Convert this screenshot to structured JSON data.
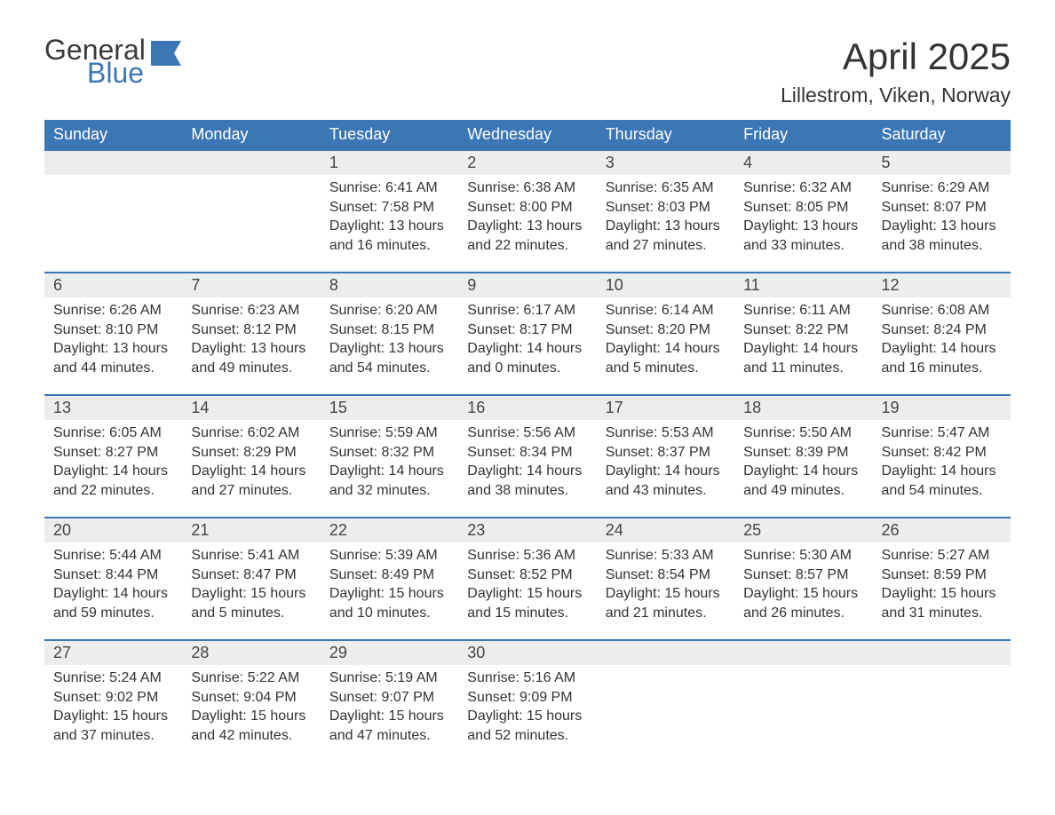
{
  "brand": {
    "general": "General",
    "blue": "Blue",
    "flag_color": "#3b76b5"
  },
  "title": "April 2025",
  "location": "Lillestrom, Viken, Norway",
  "colors": {
    "header_bg": "#3b76b5",
    "header_text": "#ffffff",
    "daynum_bg": "#ededed",
    "rule": "#3b76b5",
    "body_text": "#333333",
    "page_bg": "#ffffff"
  },
  "typography": {
    "title_fontsize": 42,
    "location_fontsize": 23,
    "header_fontsize": 18,
    "daynum_fontsize": 18,
    "body_fontsize": 16
  },
  "weekdays": [
    "Sunday",
    "Monday",
    "Tuesday",
    "Wednesday",
    "Thursday",
    "Friday",
    "Saturday"
  ],
  "weeks": [
    [
      null,
      null,
      {
        "d": "1",
        "sr": "Sunrise: 6:41 AM",
        "ss": "Sunset: 7:58 PM",
        "dl": "Daylight: 13 hours and 16 minutes."
      },
      {
        "d": "2",
        "sr": "Sunrise: 6:38 AM",
        "ss": "Sunset: 8:00 PM",
        "dl": "Daylight: 13 hours and 22 minutes."
      },
      {
        "d": "3",
        "sr": "Sunrise: 6:35 AM",
        "ss": "Sunset: 8:03 PM",
        "dl": "Daylight: 13 hours and 27 minutes."
      },
      {
        "d": "4",
        "sr": "Sunrise: 6:32 AM",
        "ss": "Sunset: 8:05 PM",
        "dl": "Daylight: 13 hours and 33 minutes."
      },
      {
        "d": "5",
        "sr": "Sunrise: 6:29 AM",
        "ss": "Sunset: 8:07 PM",
        "dl": "Daylight: 13 hours and 38 minutes."
      }
    ],
    [
      {
        "d": "6",
        "sr": "Sunrise: 6:26 AM",
        "ss": "Sunset: 8:10 PM",
        "dl": "Daylight: 13 hours and 44 minutes."
      },
      {
        "d": "7",
        "sr": "Sunrise: 6:23 AM",
        "ss": "Sunset: 8:12 PM",
        "dl": "Daylight: 13 hours and 49 minutes."
      },
      {
        "d": "8",
        "sr": "Sunrise: 6:20 AM",
        "ss": "Sunset: 8:15 PM",
        "dl": "Daylight: 13 hours and 54 minutes."
      },
      {
        "d": "9",
        "sr": "Sunrise: 6:17 AM",
        "ss": "Sunset: 8:17 PM",
        "dl": "Daylight: 14 hours and 0 minutes."
      },
      {
        "d": "10",
        "sr": "Sunrise: 6:14 AM",
        "ss": "Sunset: 8:20 PM",
        "dl": "Daylight: 14 hours and 5 minutes."
      },
      {
        "d": "11",
        "sr": "Sunrise: 6:11 AM",
        "ss": "Sunset: 8:22 PM",
        "dl": "Daylight: 14 hours and 11 minutes."
      },
      {
        "d": "12",
        "sr": "Sunrise: 6:08 AM",
        "ss": "Sunset: 8:24 PM",
        "dl": "Daylight: 14 hours and 16 minutes."
      }
    ],
    [
      {
        "d": "13",
        "sr": "Sunrise: 6:05 AM",
        "ss": "Sunset: 8:27 PM",
        "dl": "Daylight: 14 hours and 22 minutes."
      },
      {
        "d": "14",
        "sr": "Sunrise: 6:02 AM",
        "ss": "Sunset: 8:29 PM",
        "dl": "Daylight: 14 hours and 27 minutes."
      },
      {
        "d": "15",
        "sr": "Sunrise: 5:59 AM",
        "ss": "Sunset: 8:32 PM",
        "dl": "Daylight: 14 hours and 32 minutes."
      },
      {
        "d": "16",
        "sr": "Sunrise: 5:56 AM",
        "ss": "Sunset: 8:34 PM",
        "dl": "Daylight: 14 hours and 38 minutes."
      },
      {
        "d": "17",
        "sr": "Sunrise: 5:53 AM",
        "ss": "Sunset: 8:37 PM",
        "dl": "Daylight: 14 hours and 43 minutes."
      },
      {
        "d": "18",
        "sr": "Sunrise: 5:50 AM",
        "ss": "Sunset: 8:39 PM",
        "dl": "Daylight: 14 hours and 49 minutes."
      },
      {
        "d": "19",
        "sr": "Sunrise: 5:47 AM",
        "ss": "Sunset: 8:42 PM",
        "dl": "Daylight: 14 hours and 54 minutes."
      }
    ],
    [
      {
        "d": "20",
        "sr": "Sunrise: 5:44 AM",
        "ss": "Sunset: 8:44 PM",
        "dl": "Daylight: 14 hours and 59 minutes."
      },
      {
        "d": "21",
        "sr": "Sunrise: 5:41 AM",
        "ss": "Sunset: 8:47 PM",
        "dl": "Daylight: 15 hours and 5 minutes."
      },
      {
        "d": "22",
        "sr": "Sunrise: 5:39 AM",
        "ss": "Sunset: 8:49 PM",
        "dl": "Daylight: 15 hours and 10 minutes."
      },
      {
        "d": "23",
        "sr": "Sunrise: 5:36 AM",
        "ss": "Sunset: 8:52 PM",
        "dl": "Daylight: 15 hours and 15 minutes."
      },
      {
        "d": "24",
        "sr": "Sunrise: 5:33 AM",
        "ss": "Sunset: 8:54 PM",
        "dl": "Daylight: 15 hours and 21 minutes."
      },
      {
        "d": "25",
        "sr": "Sunrise: 5:30 AM",
        "ss": "Sunset: 8:57 PM",
        "dl": "Daylight: 15 hours and 26 minutes."
      },
      {
        "d": "26",
        "sr": "Sunrise: 5:27 AM",
        "ss": "Sunset: 8:59 PM",
        "dl": "Daylight: 15 hours and 31 minutes."
      }
    ],
    [
      {
        "d": "27",
        "sr": "Sunrise: 5:24 AM",
        "ss": "Sunset: 9:02 PM",
        "dl": "Daylight: 15 hours and 37 minutes."
      },
      {
        "d": "28",
        "sr": "Sunrise: 5:22 AM",
        "ss": "Sunset: 9:04 PM",
        "dl": "Daylight: 15 hours and 42 minutes."
      },
      {
        "d": "29",
        "sr": "Sunrise: 5:19 AM",
        "ss": "Sunset: 9:07 PM",
        "dl": "Daylight: 15 hours and 47 minutes."
      },
      {
        "d": "30",
        "sr": "Sunrise: 5:16 AM",
        "ss": "Sunset: 9:09 PM",
        "dl": "Daylight: 15 hours and 52 minutes."
      },
      null,
      null,
      null
    ]
  ]
}
